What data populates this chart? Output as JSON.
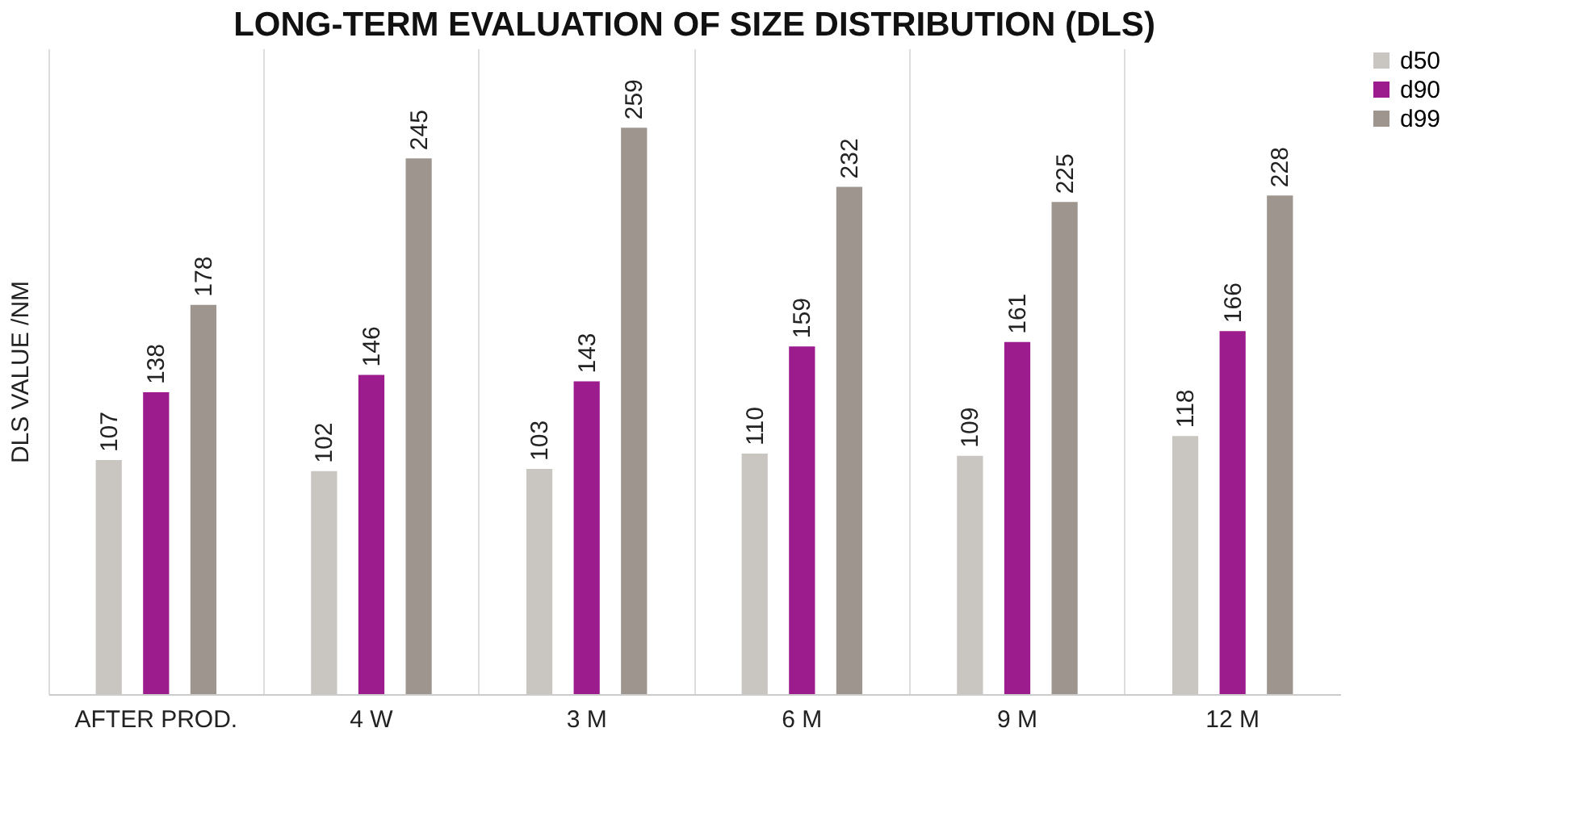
{
  "chart_data": {
    "type": "bar",
    "title": "LONG-TERM EVALUATION OF SIZE DISTRIBUTION (DLS)",
    "ylabel": "DLS VALUE /NM",
    "categories": [
      "AFTER PROD.",
      "4 W",
      "3 M",
      "6 M",
      "9 M",
      "12 M"
    ],
    "series": [
      {
        "name": "d50",
        "color": "#c9c5c0",
        "values": [
          107,
          102,
          103,
          110,
          109,
          118
        ]
      },
      {
        "name": "d90",
        "color": "#9c1c8e",
        "values": [
          138,
          146,
          143,
          159,
          161,
          166
        ]
      },
      {
        "name": "d99",
        "color": "#9d958e",
        "values": [
          178,
          245,
          259,
          232,
          225,
          228
        ]
      }
    ],
    "relative": false,
    "data_labels": true,
    "grid": "x",
    "legend": "right"
  }
}
